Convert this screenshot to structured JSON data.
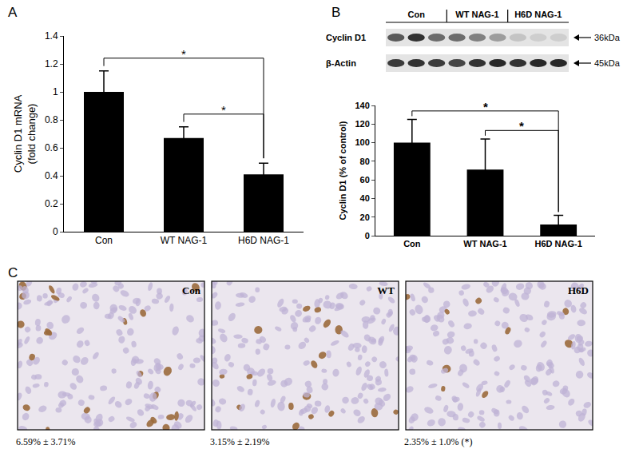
{
  "chart_data": [
    {
      "panel": "A",
      "type": "bar",
      "categories": [
        "Con",
        "WT NAG-1",
        "H6D NAG-1"
      ],
      "values": [
        1.0,
        0.67,
        0.41
      ],
      "errors": [
        0.15,
        0.08,
        0.08
      ],
      "color": "#000000",
      "y_label": [
        "Cyclin D1 mRNA",
        "(fold change)"
      ],
      "ylim": [
        0,
        1.4
      ],
      "yticks": [
        0,
        0.2,
        0.4,
        0.6,
        0.8,
        1,
        1.2,
        1.4
      ],
      "grid": false,
      "significance": [
        {
          "pair": [
            "Con",
            "H6D NAG-1"
          ],
          "label": "*"
        },
        {
          "pair": [
            "WT NAG-1",
            "H6D NAG-1"
          ],
          "label": "*"
        }
      ]
    },
    {
      "panel": "B",
      "type": "bar",
      "categories": [
        "Con",
        "WT NAG-1",
        "H6D NAG-1"
      ],
      "values": [
        100,
        71,
        12
      ],
      "errors": [
        25,
        33,
        10
      ],
      "color": "#000000",
      "y_label": [
        "Cyclin D1 (% of control)"
      ],
      "ylim": [
        0,
        140
      ],
      "yticks": [
        0,
        20,
        40,
        60,
        80,
        100,
        120,
        140
      ],
      "grid": false,
      "significance": [
        {
          "pair": [
            "Con",
            "H6D NAG-1"
          ],
          "label": "*"
        },
        {
          "pair": [
            "WT NAG-1",
            "H6D NAG-1"
          ],
          "label": "*"
        }
      ]
    }
  ],
  "blot": {
    "groups": [
      {
        "label": "Con",
        "lanes": 3
      },
      {
        "label": "WT NAG-1",
        "lanes": 3
      },
      {
        "label": "H6D NAG-1",
        "lanes": 3
      }
    ],
    "rows": [
      {
        "label": "Cyclin D1",
        "size_label": "36kDa",
        "intensity": [
          0.7,
          0.9,
          0.6,
          0.6,
          0.5,
          0.35,
          0.15,
          0.1,
          0.1
        ]
      },
      {
        "label": "β-Actin",
        "size_label": "45kDa",
        "intensity": [
          0.85,
          0.9,
          0.85,
          0.8,
          0.9,
          0.95,
          0.9,
          0.95,
          0.95
        ]
      }
    ]
  },
  "micrographs": {
    "panel": "C",
    "images": [
      {
        "label": "Con",
        "caption": "6.59% ± 3.71%"
      },
      {
        "label": "WT",
        "caption": "3.15% ± 2.19%"
      },
      {
        "label": "H6D",
        "caption": "2.35% ± 1.0% (*)"
      }
    ]
  }
}
